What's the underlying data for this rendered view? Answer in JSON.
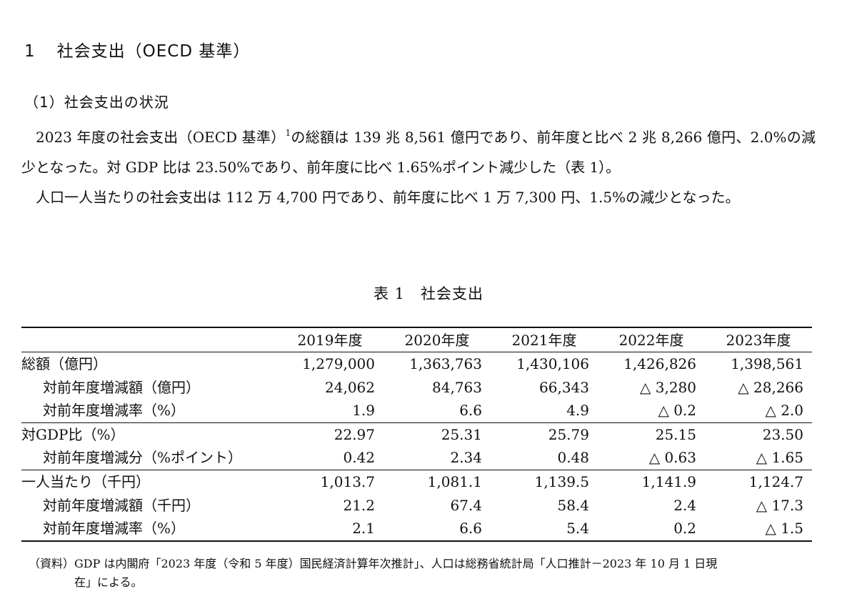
{
  "heading1": {
    "number": "1",
    "title": "社会支出（OECD 基準）"
  },
  "heading2": "（1）社会支出の状況",
  "paragraph1": {
    "before_sup": "2023 年度の社会支出（OECD 基準）",
    "footnote_ref": "1",
    "after_sup": "の総額は 139 兆 8,561 億円であり、前年度と比べ 2 兆 8,266 億円、2.0%の減少となった。対 GDP 比は 23.50%であり、前年度に比べ 1.65%ポイント減少した（表 1）。"
  },
  "paragraph2": "人口一人当たりの社会支出は 112 万 4,700 円であり、前年度に比べ 1 万 7,300 円、1.5%の減少となった。",
  "table": {
    "caption": "表 1　社会支出",
    "years": [
      "2019年度",
      "2020年度",
      "2021年度",
      "2022年度",
      "2023年度"
    ],
    "groups": [
      {
        "main": {
          "label": "総額（億円）",
          "values": [
            "1,279,000",
            "1,363,763",
            "1,430,106",
            "1,426,826",
            "1,398,561"
          ]
        },
        "subs": [
          {
            "label": "対前年度増減額（億円）",
            "values": [
              "24,062",
              "84,763",
              "66,343",
              "△ 3,280",
              "△ 28,266"
            ]
          },
          {
            "label": "対前年度増減率（%）",
            "values": [
              "1.9",
              "6.6",
              "4.9",
              "△ 0.2",
              "△ 2.0"
            ]
          }
        ]
      },
      {
        "main": {
          "label": "対GDP比（%）",
          "values": [
            "22.97",
            "25.31",
            "25.79",
            "25.15",
            "23.50"
          ]
        },
        "subs": [
          {
            "label": "対前年度増減分（%ポイント）",
            "values": [
              "0.42",
              "2.34",
              "0.48",
              "△ 0.63",
              "△ 1.65"
            ]
          }
        ]
      },
      {
        "main": {
          "label": "一人当たり（千円）",
          "values": [
            "1,013.7",
            "1,081.1",
            "1,139.5",
            "1,141.9",
            "1,124.7"
          ]
        },
        "subs": [
          {
            "label": "対前年度増減額（千円）",
            "values": [
              "21.2",
              "67.4",
              "58.4",
              "2.4",
              "△ 17.3"
            ]
          },
          {
            "label": "対前年度増減率（%）",
            "values": [
              "2.1",
              "6.6",
              "5.4",
              "0.2",
              "△ 1.5"
            ]
          }
        ]
      }
    ]
  },
  "note": {
    "line1": "（資料）GDP は内閣府「2023 年度（令和 5 年度）国民経済計算年次推計」、人口は総務省統計局「人口推計－2023 年 10 月 1 日現",
    "line2": "在」による。"
  }
}
